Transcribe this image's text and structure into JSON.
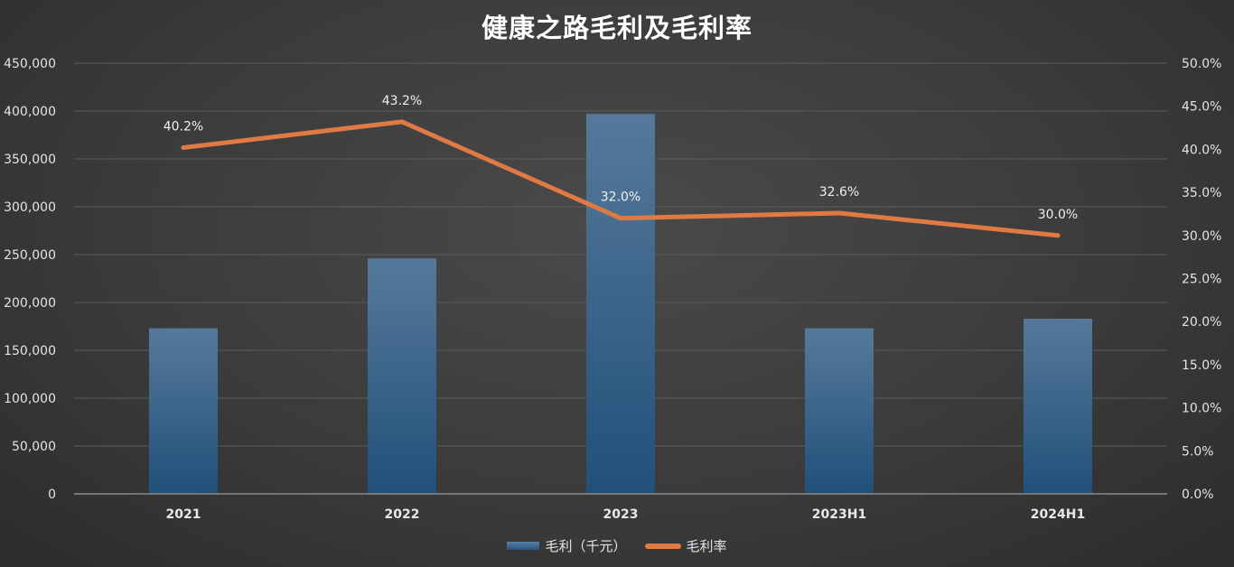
{
  "chart_data": {
    "type": "bar",
    "title": "健康之路毛利及毛利率",
    "categories": [
      "2021",
      "2022",
      "2023",
      "2023H1",
      "2024H1"
    ],
    "series": [
      {
        "name": "毛利（千元）",
        "type": "bar",
        "axis": "left",
        "color": "#2f5f88",
        "values": [
          173000,
          246000,
          397000,
          173000,
          183000
        ]
      },
      {
        "name": "毛利率",
        "type": "line",
        "axis": "right",
        "color": "#e07a45",
        "values": [
          40.2,
          43.2,
          32.0,
          32.6,
          30.0
        ],
        "labels": [
          "40.2%",
          "43.2%",
          "32.0%",
          "32.6%",
          "30.0%"
        ]
      }
    ],
    "ylim": [
      0,
      450000
    ],
    "y_ticks": [
      "0",
      "50,000",
      "100,000",
      "150,000",
      "200,000",
      "250,000",
      "300,000",
      "350,000",
      "400,000",
      "450,000"
    ],
    "y2lim": [
      0,
      50
    ],
    "y2_ticks": [
      "0.0%",
      "5.0%",
      "10.0%",
      "15.0%",
      "20.0%",
      "25.0%",
      "30.0%",
      "35.0%",
      "40.0%",
      "45.0%",
      "50.0%"
    ],
    "grid": true,
    "legend": "bottom"
  }
}
